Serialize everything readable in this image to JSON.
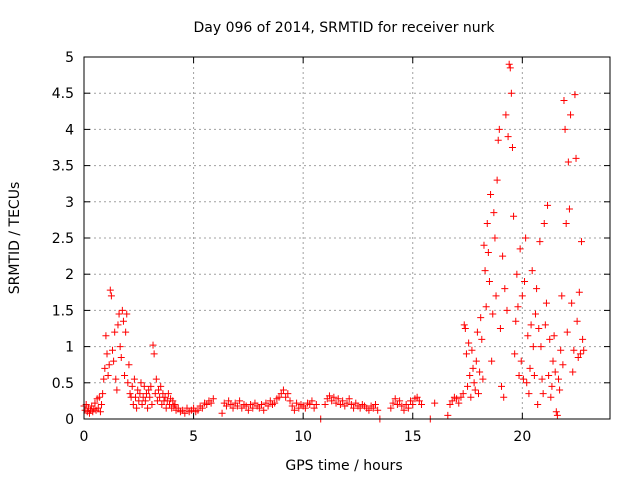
{
  "chart_data": {
    "type": "scatter",
    "title": "Day 096 of 2014, SRMTID for receiver nurk",
    "xlabel": "GPS time / hours",
    "ylabel": "SRMTID / TECUs",
    "xlim": [
      0,
      24
    ],
    "ylim": [
      0,
      5
    ],
    "grid": true,
    "legend": "none",
    "marker": "plus",
    "color": "#ff0000",
    "xticks": [
      0,
      5,
      10,
      15,
      20
    ],
    "xtick_labels": [
      "0",
      "5",
      "10",
      "15",
      "20"
    ],
    "yticks": [
      0,
      0.5,
      1,
      1.5,
      2,
      2.5,
      3,
      3.5,
      4,
      4.5,
      5
    ],
    "ytick_labels": [
      "0",
      "0.5",
      "1",
      "1.5",
      "2",
      "2.5",
      "3",
      "3.5",
      "4",
      "4.5",
      "5"
    ],
    "series": [
      {
        "name": "SRMTID",
        "points": [
          [
            0.0,
            0.18
          ],
          [
            0.05,
            0.12
          ],
          [
            0.1,
            0.2
          ],
          [
            0.15,
            0.1
          ],
          [
            0.2,
            0.15
          ],
          [
            0.25,
            0.08
          ],
          [
            0.3,
            0.12
          ],
          [
            0.35,
            0.18
          ],
          [
            0.4,
            0.1
          ],
          [
            0.45,
            0.14
          ],
          [
            0.5,
            0.22
          ],
          [
            0.55,
            0.12
          ],
          [
            0.6,
            0.28
          ],
          [
            0.65,
            0.15
          ],
          [
            0.7,
            0.3
          ],
          [
            0.75,
            0.1
          ],
          [
            0.8,
            0.2
          ],
          [
            0.85,
            0.35
          ],
          [
            0.9,
            0.55
          ],
          [
            0.95,
            0.7
          ],
          [
            1.0,
            1.15
          ],
          [
            1.05,
            0.9
          ],
          [
            1.1,
            0.6
          ],
          [
            1.15,
            0.75
          ],
          [
            1.2,
            1.78
          ],
          [
            1.25,
            1.7
          ],
          [
            1.3,
            0.95
          ],
          [
            1.35,
            0.8
          ],
          [
            1.4,
            1.2
          ],
          [
            1.45,
            0.55
          ],
          [
            1.5,
            0.4
          ],
          [
            1.55,
            1.3
          ],
          [
            1.6,
            1.45
          ],
          [
            1.65,
            1.0
          ],
          [
            1.7,
            0.85
          ],
          [
            1.75,
            1.5
          ],
          [
            1.8,
            1.35
          ],
          [
            1.85,
            0.6
          ],
          [
            1.9,
            1.2
          ],
          [
            1.95,
            1.45
          ],
          [
            2.0,
            0.5
          ],
          [
            2.05,
            0.75
          ],
          [
            2.1,
            0.35
          ],
          [
            2.15,
            0.3
          ],
          [
            2.2,
            0.45
          ],
          [
            2.25,
            0.2
          ],
          [
            2.3,
            0.55
          ],
          [
            2.35,
            0.3
          ],
          [
            2.4,
            0.15
          ],
          [
            2.45,
            0.4
          ],
          [
            2.5,
            0.25
          ],
          [
            2.55,
            0.35
          ],
          [
            2.6,
            0.5
          ],
          [
            2.65,
            0.2
          ],
          [
            2.7,
            0.3
          ],
          [
            2.75,
            0.45
          ],
          [
            2.8,
            0.25
          ],
          [
            2.85,
            0.35
          ],
          [
            2.9,
            0.15
          ],
          [
            2.95,
            0.4
          ],
          [
            3.0,
            0.3
          ],
          [
            3.05,
            0.45
          ],
          [
            3.1,
            0.2
          ],
          [
            3.15,
            1.02
          ],
          [
            3.2,
            0.9
          ],
          [
            3.25,
            0.35
          ],
          [
            3.3,
            0.55
          ],
          [
            3.35,
            0.25
          ],
          [
            3.4,
            0.4
          ],
          [
            3.45,
            0.3
          ],
          [
            3.5,
            0.45
          ],
          [
            3.55,
            0.2
          ],
          [
            3.6,
            0.35
          ],
          [
            3.65,
            0.25
          ],
          [
            3.7,
            0.3
          ],
          [
            3.75,
            0.15
          ],
          [
            3.8,
            0.25
          ],
          [
            3.85,
            0.35
          ],
          [
            3.9,
            0.2
          ],
          [
            3.95,
            0.28
          ],
          [
            4.0,
            0.15
          ],
          [
            4.05,
            0.25
          ],
          [
            4.1,
            0.18
          ],
          [
            4.15,
            0.2
          ],
          [
            4.2,
            0.12
          ],
          [
            4.3,
            0.15
          ],
          [
            4.4,
            0.1
          ],
          [
            4.5,
            0.12
          ],
          [
            4.6,
            0.08
          ],
          [
            4.7,
            0.15
          ],
          [
            4.8,
            0.1
          ],
          [
            4.9,
            0.12
          ],
          [
            5.0,
            0.15
          ],
          [
            5.1,
            0.1
          ],
          [
            5.2,
            0.12
          ],
          [
            5.3,
            0.18
          ],
          [
            5.4,
            0.15
          ],
          [
            5.5,
            0.22
          ],
          [
            5.6,
            0.2
          ],
          [
            5.7,
            0.25
          ],
          [
            5.8,
            0.22
          ],
          [
            5.9,
            0.28
          ],
          [
            6.3,
            0.08
          ],
          [
            6.4,
            0.22
          ],
          [
            6.5,
            0.18
          ],
          [
            6.6,
            0.25
          ],
          [
            6.7,
            0.2
          ],
          [
            6.8,
            0.15
          ],
          [
            6.9,
            0.22
          ],
          [
            7.0,
            0.18
          ],
          [
            7.1,
            0.25
          ],
          [
            7.2,
            0.15
          ],
          [
            7.3,
            0.2
          ],
          [
            7.4,
            0.18
          ],
          [
            7.5,
            0.12
          ],
          [
            7.6,
            0.2
          ],
          [
            7.7,
            0.15
          ],
          [
            7.8,
            0.22
          ],
          [
            7.9,
            0.18
          ],
          [
            8.0,
            0.15
          ],
          [
            8.1,
            0.2
          ],
          [
            8.2,
            0.12
          ],
          [
            8.3,
            0.22
          ],
          [
            8.4,
            0.18
          ],
          [
            8.5,
            0.25
          ],
          [
            8.6,
            0.2
          ],
          [
            8.7,
            0.22
          ],
          [
            8.8,
            0.28
          ],
          [
            8.9,
            0.3
          ],
          [
            9.0,
            0.35
          ],
          [
            9.1,
            0.4
          ],
          [
            9.2,
            0.3
          ],
          [
            9.3,
            0.35
          ],
          [
            9.4,
            0.25
          ],
          [
            9.5,
            0.18
          ],
          [
            9.6,
            0.12
          ],
          [
            9.7,
            0.22
          ],
          [
            9.8,
            0.15
          ],
          [
            9.9,
            0.2
          ],
          [
            10.0,
            0.18
          ],
          [
            10.1,
            0.15
          ],
          [
            10.2,
            0.22
          ],
          [
            10.3,
            0.2
          ],
          [
            10.4,
            0.25
          ],
          [
            10.5,
            0.15
          ],
          [
            10.6,
            0.2
          ],
          [
            10.8,
            0.0
          ],
          [
            11.0,
            0.2
          ],
          [
            11.1,
            0.28
          ],
          [
            11.2,
            0.32
          ],
          [
            11.3,
            0.25
          ],
          [
            11.4,
            0.3
          ],
          [
            11.5,
            0.22
          ],
          [
            11.6,
            0.28
          ],
          [
            11.7,
            0.2
          ],
          [
            11.8,
            0.25
          ],
          [
            11.9,
            0.18
          ],
          [
            12.0,
            0.22
          ],
          [
            12.1,
            0.28
          ],
          [
            12.2,
            0.2
          ],
          [
            12.3,
            0.15
          ],
          [
            12.4,
            0.22
          ],
          [
            12.5,
            0.18
          ],
          [
            12.6,
            0.15
          ],
          [
            12.7,
            0.2
          ],
          [
            12.8,
            0.18
          ],
          [
            12.9,
            0.15
          ],
          [
            13.0,
            0.12
          ],
          [
            13.1,
            0.18
          ],
          [
            13.2,
            0.15
          ],
          [
            13.3,
            0.2
          ],
          [
            13.4,
            0.12
          ],
          [
            13.5,
            0.0
          ],
          [
            14.0,
            0.15
          ],
          [
            14.1,
            0.22
          ],
          [
            14.2,
            0.28
          ],
          [
            14.3,
            0.2
          ],
          [
            14.4,
            0.25
          ],
          [
            14.5,
            0.18
          ],
          [
            14.6,
            0.12
          ],
          [
            14.7,
            0.2
          ],
          [
            14.8,
            0.15
          ],
          [
            14.9,
            0.25
          ],
          [
            15.0,
            0.2
          ],
          [
            15.1,
            0.28
          ],
          [
            15.2,
            0.3
          ],
          [
            15.3,
            0.25
          ],
          [
            15.4,
            0.2
          ],
          [
            15.8,
            0.0
          ],
          [
            16.0,
            0.22
          ],
          [
            16.6,
            0.05
          ],
          [
            16.7,
            0.2
          ],
          [
            16.8,
            0.25
          ],
          [
            16.9,
            0.3
          ],
          [
            17.0,
            0.28
          ],
          [
            17.1,
            0.22
          ],
          [
            17.2,
            0.3
          ],
          [
            17.3,
            0.35
          ],
          [
            17.35,
            1.3
          ],
          [
            17.4,
            1.25
          ],
          [
            17.45,
            0.9
          ],
          [
            17.5,
            0.45
          ],
          [
            17.55,
            1.05
          ],
          [
            17.6,
            0.6
          ],
          [
            17.65,
            0.3
          ],
          [
            17.7,
            0.95
          ],
          [
            17.75,
            0.7
          ],
          [
            17.8,
            0.5
          ],
          [
            17.85,
            0.4
          ],
          [
            17.9,
            0.8
          ],
          [
            17.95,
            1.2
          ],
          [
            18.0,
            0.35
          ],
          [
            18.05,
            0.65
          ],
          [
            18.1,
            1.4
          ],
          [
            18.15,
            1.1
          ],
          [
            18.2,
            0.55
          ],
          [
            18.25,
            2.4
          ],
          [
            18.3,
            2.05
          ],
          [
            18.35,
            1.55
          ],
          [
            18.4,
            2.7
          ],
          [
            18.45,
            2.3
          ],
          [
            18.5,
            1.9
          ],
          [
            18.55,
            3.1
          ],
          [
            18.6,
            0.8
          ],
          [
            18.65,
            1.45
          ],
          [
            18.7,
            2.85
          ],
          [
            18.75,
            2.5
          ],
          [
            18.8,
            1.7
          ],
          [
            18.85,
            3.3
          ],
          [
            18.9,
            3.85
          ],
          [
            18.95,
            4.0
          ],
          [
            19.0,
            1.25
          ],
          [
            19.05,
            0.45
          ],
          [
            19.1,
            2.25
          ],
          [
            19.15,
            0.3
          ],
          [
            19.2,
            1.8
          ],
          [
            19.25,
            4.2
          ],
          [
            19.3,
            1.5
          ],
          [
            19.35,
            3.9
          ],
          [
            19.4,
            4.9
          ],
          [
            19.45,
            4.85
          ],
          [
            19.5,
            4.5
          ],
          [
            19.55,
            3.75
          ],
          [
            19.6,
            2.8
          ],
          [
            19.65,
            0.9
          ],
          [
            19.7,
            1.35
          ],
          [
            19.75,
            2.0
          ],
          [
            19.8,
            1.55
          ],
          [
            19.85,
            0.6
          ],
          [
            19.9,
            2.35
          ],
          [
            19.95,
            0.8
          ],
          [
            20.0,
            1.7
          ],
          [
            20.05,
            0.55
          ],
          [
            20.1,
            1.9
          ],
          [
            20.15,
            2.5
          ],
          [
            20.2,
            0.5
          ],
          [
            20.25,
            1.15
          ],
          [
            20.3,
            0.35
          ],
          [
            20.35,
            0.7
          ],
          [
            20.4,
            1.3
          ],
          [
            20.45,
            2.05
          ],
          [
            20.5,
            1.0
          ],
          [
            20.55,
            0.6
          ],
          [
            20.6,
            1.45
          ],
          [
            20.65,
            1.8
          ],
          [
            20.7,
            0.2
          ],
          [
            20.75,
            1.25
          ],
          [
            20.8,
            2.45
          ],
          [
            20.85,
            1.0
          ],
          [
            20.9,
            0.55
          ],
          [
            20.95,
            0.35
          ],
          [
            21.0,
            2.7
          ],
          [
            21.05,
            1.3
          ],
          [
            21.1,
            1.6
          ],
          [
            21.15,
            2.95
          ],
          [
            21.2,
            0.6
          ],
          [
            21.25,
            1.1
          ],
          [
            21.3,
            0.3
          ],
          [
            21.35,
            0.45
          ],
          [
            21.4,
            0.8
          ],
          [
            21.45,
            1.15
          ],
          [
            21.5,
            0.65
          ],
          [
            21.55,
            0.1
          ],
          [
            21.6,
            0.05
          ],
          [
            21.65,
            0.55
          ],
          [
            21.7,
            0.4
          ],
          [
            21.75,
            0.95
          ],
          [
            21.8,
            1.7
          ],
          [
            21.85,
            0.75
          ],
          [
            21.9,
            4.4
          ],
          [
            21.95,
            4.0
          ],
          [
            22.0,
            2.7
          ],
          [
            22.05,
            1.2
          ],
          [
            22.1,
            3.55
          ],
          [
            22.15,
            2.9
          ],
          [
            22.2,
            4.2
          ],
          [
            22.25,
            1.6
          ],
          [
            22.3,
            0.65
          ],
          [
            22.35,
            0.95
          ],
          [
            22.4,
            4.48
          ],
          [
            22.45,
            3.6
          ],
          [
            22.5,
            1.35
          ],
          [
            22.55,
            0.85
          ],
          [
            22.6,
            1.75
          ],
          [
            22.65,
            0.9
          ],
          [
            22.7,
            2.45
          ],
          [
            22.75,
            1.1
          ],
          [
            22.8,
            0.95
          ]
        ]
      }
    ]
  }
}
